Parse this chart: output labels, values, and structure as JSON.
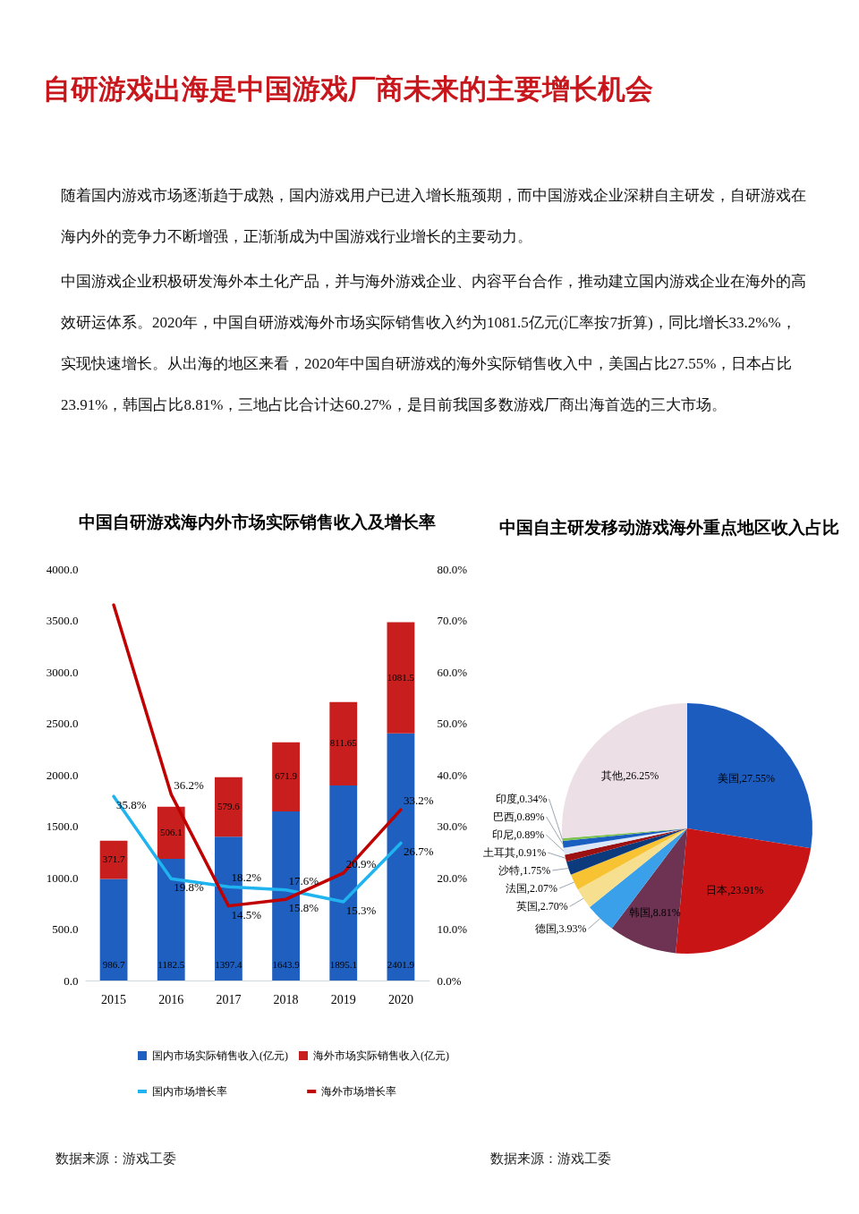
{
  "chart_data": [
    {
      "type": "other",
      "title": "自研游戏出海是中国游戏厂商未来的主要增长机会",
      "annotations": [
        "随着国内游戏市场逐渐趋于成熟，国内游戏用户已进入增长瓶颈期，而中国游戏企业深耕自主研发，自研游戏在海内外的竞争力不断增强，正渐渐成为中国游戏行业增长的主要动力。",
        "中国游戏企业积极研发海外本土化产品，并与海外游戏企业、内容平台合作，推动建立国内游戏企业在海外的高效研运体系。2020年，中国自研游戏海外市场实际销售收入约为1081.5亿元(汇率按7折算)，同比增长33.2%%，实现快速增长。从出海的地区来看，2020年中国自研游戏的海外实际销售收入中，美国占比27.55%，日本占比23.91%，韩国占比8.81%，三地占比合计达60.27%，是目前我国多数游戏厂商出海首选的三大市场。"
      ]
    },
    {
      "type": "bar",
      "title": "中国自研游戏海内外市场实际销售收入及增长率",
      "categories": [
        "2015",
        "2016",
        "2017",
        "2018",
        "2019",
        "2020"
      ],
      "stacked": true,
      "legend": "bottom",
      "series": [
        {
          "name": "国内市场实际销售收入(亿元)",
          "type": "bar",
          "color": "#1f5fbf",
          "values": [
            986.7,
            1182.5,
            1397.4,
            1643.9,
            1895.1,
            2401.9
          ],
          "value_labels": [
            "986.7",
            "1182.5",
            "1397.4",
            "1643.9",
            "1895.1",
            "2401.9"
          ]
        },
        {
          "name": "海外市场实际销售收入(亿元)",
          "type": "bar",
          "color": "#c81e1e",
          "values": [
            371.7,
            506.1,
            579.6,
            671.9,
            811.65,
            1081.5
          ],
          "value_labels": [
            "371.7",
            "506.1",
            "579.6",
            "671.9",
            "811.65",
            "1081.5"
          ]
        },
        {
          "name": "国内市场增长率",
          "type": "line",
          "axis": "y2",
          "color": "#1fb4ef",
          "values": [
            35.8,
            19.8,
            18.2,
            17.6,
            15.3,
            26.7
          ],
          "value_labels": [
            "35.8%",
            "19.8%",
            "18.2%",
            "17.6%",
            "15.3%",
            "26.7%"
          ]
        },
        {
          "name": "海外市场增长率",
          "type": "line",
          "axis": "y2",
          "color": "#c00000",
          "values": [
            73,
            36.2,
            14.5,
            15.8,
            20.9,
            33.2
          ],
          "value_labels": [
            null,
            "36.2%",
            "14.5%",
            "15.8%",
            "20.9%",
            "33.2%"
          ]
        }
      ],
      "ylim": [
        0,
        4000
      ],
      "yticks": [
        {
          "value": 0,
          "label": "0.0"
        },
        {
          "value": 500,
          "label": "500.0"
        },
        {
          "value": 1000,
          "label": "1000.0"
        },
        {
          "value": 1500,
          "label": "1500.0"
        },
        {
          "value": 2000,
          "label": "2000.0"
        },
        {
          "value": 2500,
          "label": "2500.0"
        },
        {
          "value": 3000,
          "label": "3000.0"
        },
        {
          "value": 3500,
          "label": "3500.0"
        },
        {
          "value": 4000,
          "label": "4000.0"
        }
      ],
      "y2lim": [
        0,
        80
      ],
      "y2ticks": [
        {
          "value": 0,
          "label": "0.0%"
        },
        {
          "value": 10,
          "label": "10.0%"
        },
        {
          "value": 20,
          "label": "20.0%"
        },
        {
          "value": 30,
          "label": "30.0%"
        },
        {
          "value": 40,
          "label": "40.0%"
        },
        {
          "value": 50,
          "label": "50.0%"
        },
        {
          "value": 60,
          "label": "60.0%"
        },
        {
          "value": 70,
          "label": "70.0%"
        },
        {
          "value": 80,
          "label": "80.0%"
        }
      ],
      "annotations": [
        "数据来源：游戏工委"
      ]
    },
    {
      "type": "pie",
      "title": "中国自主研发移动游戏海外重点地区收入占比",
      "categories": [
        "美国",
        "日本",
        "韩国",
        "德国",
        "英国",
        "法国",
        "沙特",
        "土耳其",
        "印尼",
        "巴西",
        "印度",
        "其他"
      ],
      "values": [
        27.55,
        23.91,
        8.81,
        3.93,
        2.7,
        2.07,
        1.75,
        0.91,
        0.89,
        0.89,
        0.34,
        26.25
      ],
      "value_labels": [
        "27.55%",
        "23.91%",
        "8.81%",
        "3.93%",
        "2.70%",
        "2.07%",
        "1.75%",
        "0.91%",
        "0.89%",
        "0.89%",
        "0.34%",
        "26.25%"
      ],
      "colors": [
        "#1d5cbf",
        "#c81414",
        "#6e3252",
        "#3aa0ea",
        "#f6df8e",
        "#f7c332",
        "#0c3b7d",
        "#9c1212",
        "#dbe7f6",
        "#1a5ec2",
        "#7bc24f",
        "#ecdfe6"
      ],
      "annotations": [
        "数据来源：游戏工委"
      ]
    }
  ]
}
